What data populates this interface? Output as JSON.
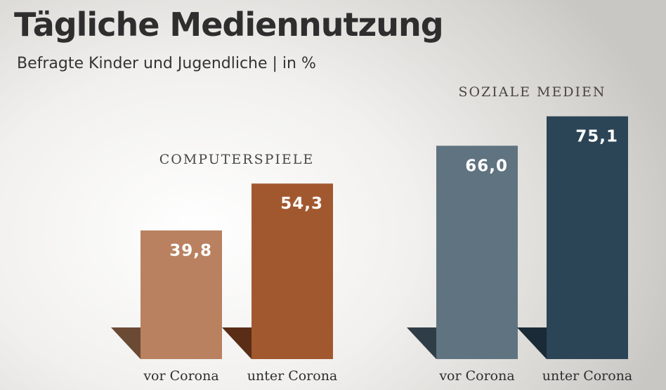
{
  "chart_data": {
    "type": "bar",
    "title": "Tägliche Mediennutzung",
    "subtitle": "Befragte Kinder und Jugendliche | in %",
    "xlabel": "",
    "ylabel": "",
    "ylim": [
      0,
      100
    ],
    "grid": false,
    "groups": [
      {
        "name": "COMPUTERSPIELE",
        "categories": [
          "vor Corona",
          "unter Corona"
        ],
        "values": [
          39.8,
          54.3
        ],
        "value_labels": [
          "39,8",
          "54,3"
        ],
        "colors": [
          "#b98160",
          "#a2582f"
        ],
        "shadow_colors": [
          "#6b4a34",
          "#5a2d17"
        ]
      },
      {
        "name": "SOZIALE MEDIEN",
        "categories": [
          "vor Corona",
          "unter Corona"
        ],
        "values": [
          66.0,
          75.1
        ],
        "value_labels": [
          "66,0",
          "75,1"
        ],
        "colors": [
          "#5f7380",
          "#2b4456"
        ],
        "shadow_colors": [
          "#2f3d47",
          "#1a2a36"
        ]
      }
    ]
  }
}
